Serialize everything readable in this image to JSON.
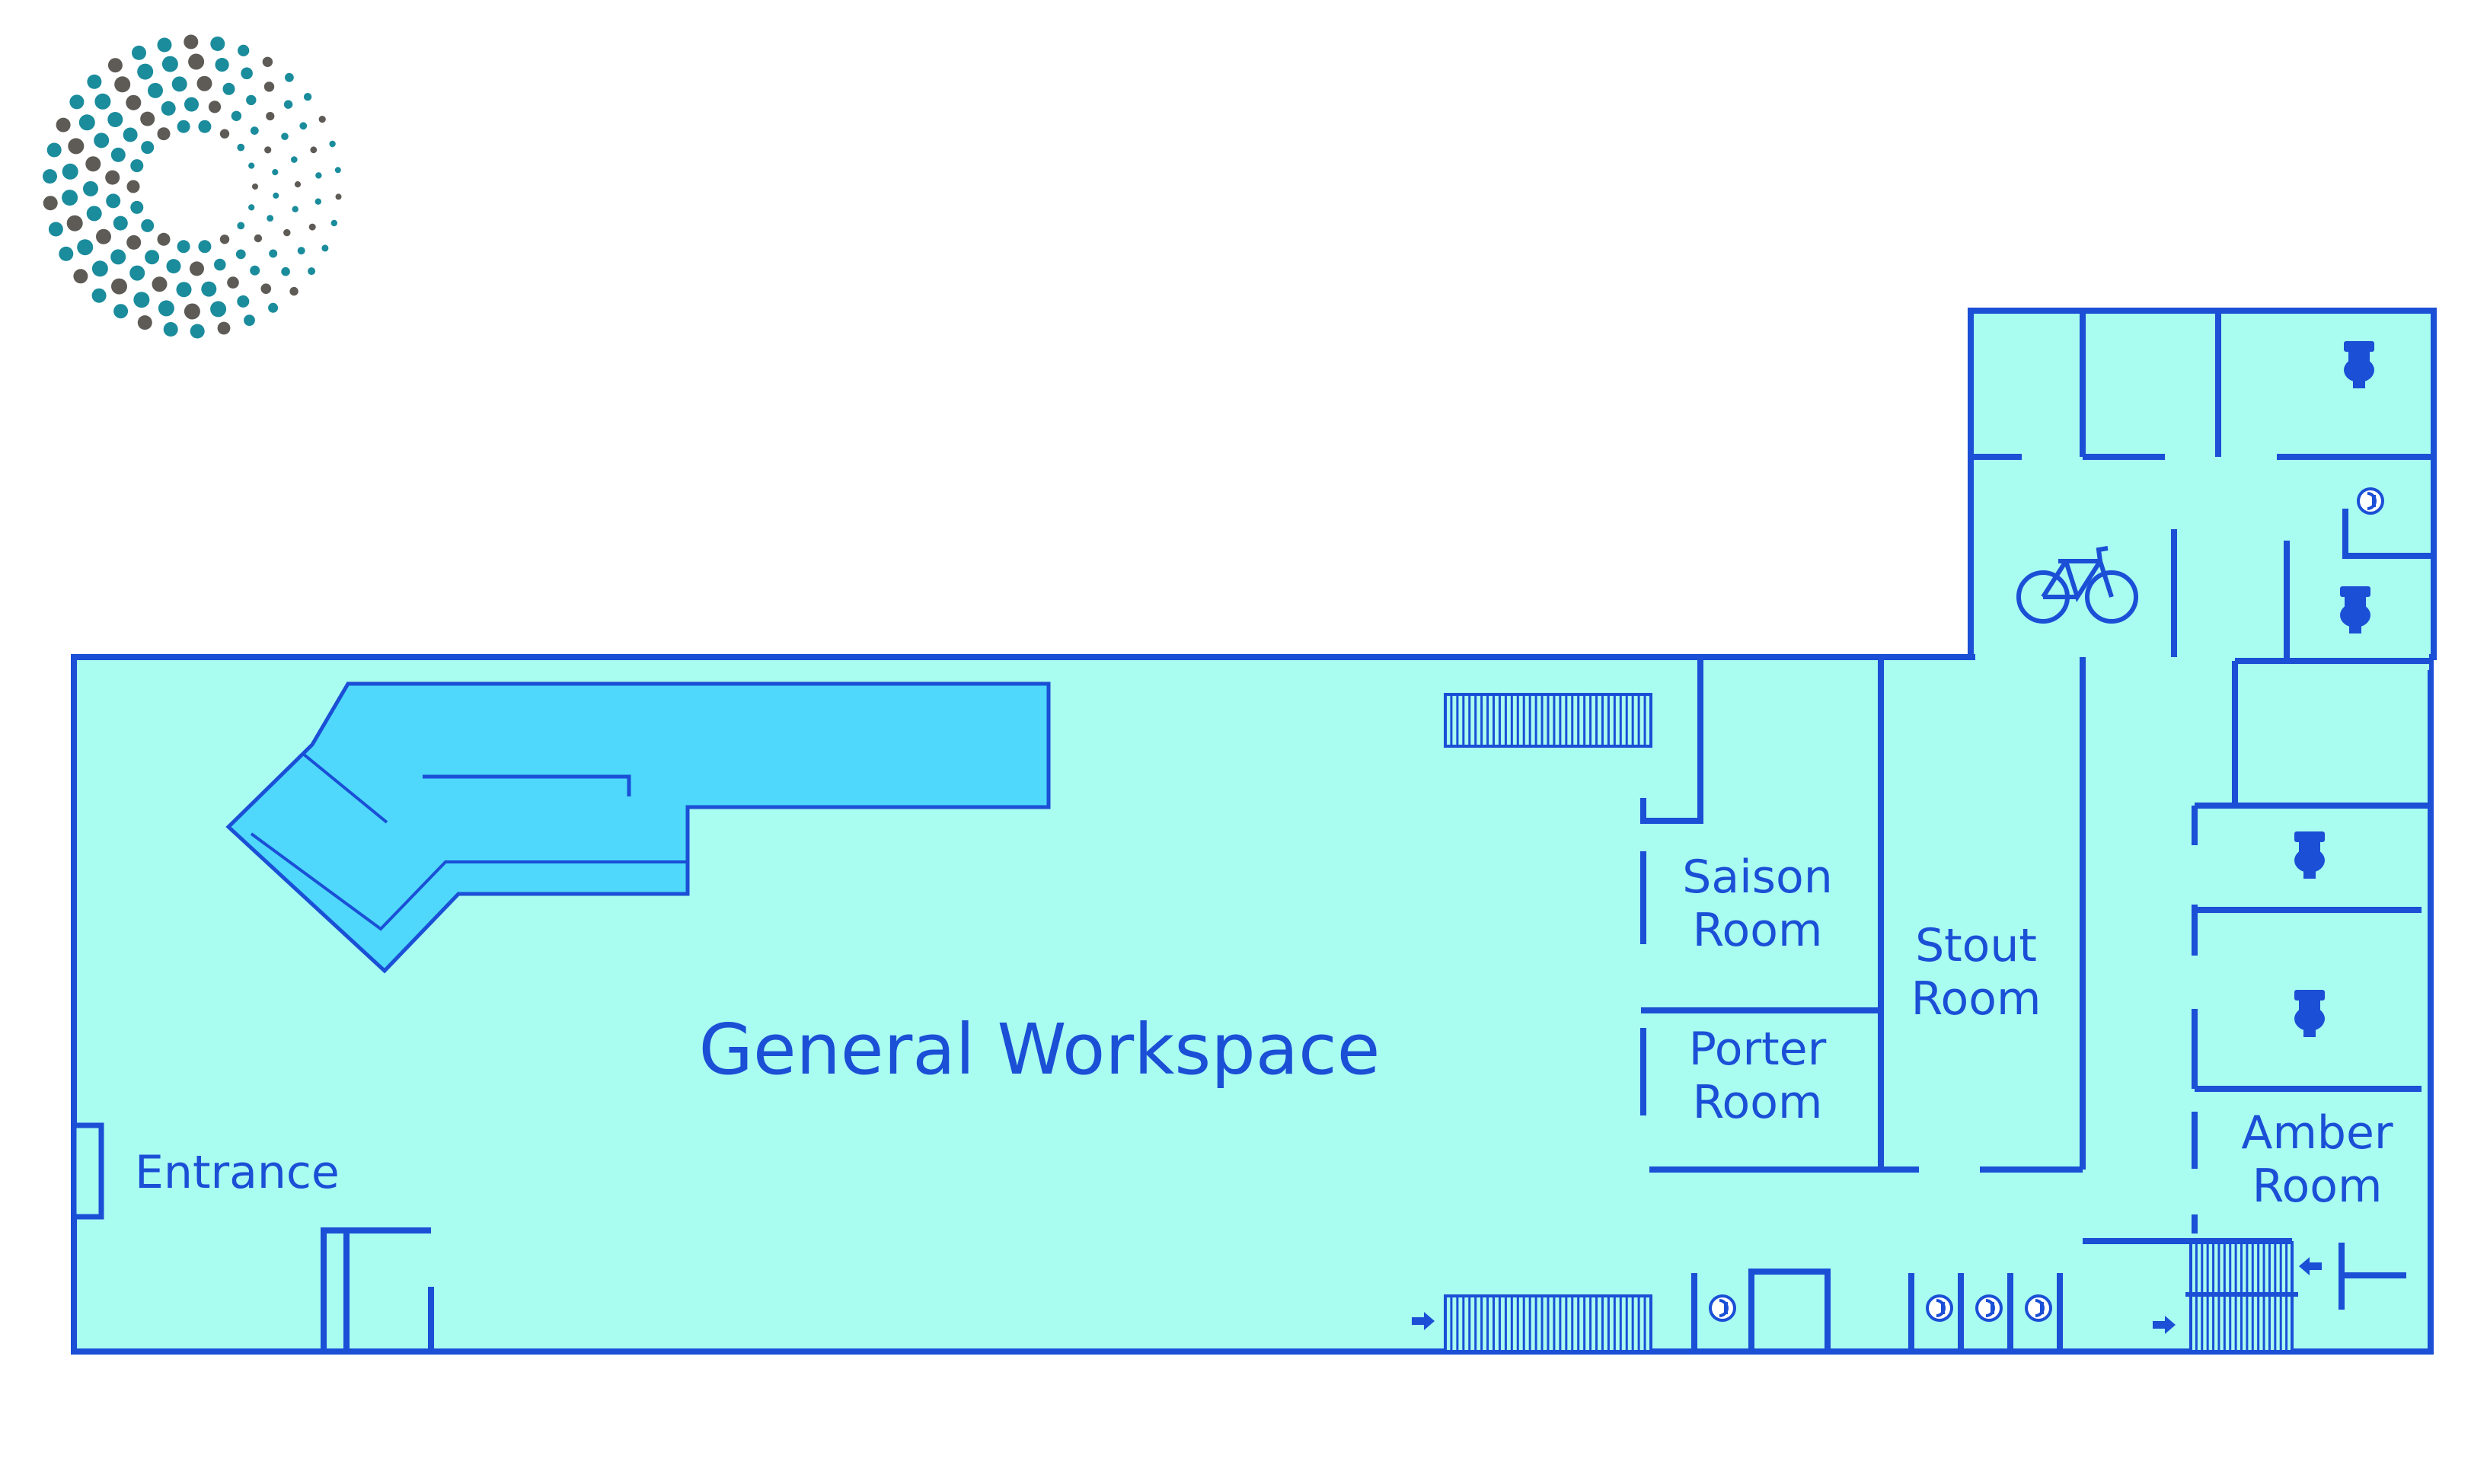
{
  "map": {
    "labels": {
      "general_workspace": "General Workspace",
      "entrance": "Entrance",
      "saison_line1": "Saison",
      "saison_line2": "Room",
      "porter_line1": "Porter",
      "porter_line2": "Room",
      "stout_line1": "Stout",
      "stout_line2": "Room",
      "amber_line1": "Amber",
      "amber_line2": "Room"
    },
    "icons": [
      "logo-dotted-ring",
      "toilet-icon",
      "bicycle-icon",
      "fire-extinguisher-icon",
      "exit-arrow-icon",
      "stairs"
    ],
    "colors": {
      "floor": "#a9fcf0",
      "walls": "#1a4fd6",
      "bar_counter": "#4fd8fc",
      "logo_teal": "#1a8c9c",
      "logo_gray": "#5e5b56"
    }
  }
}
